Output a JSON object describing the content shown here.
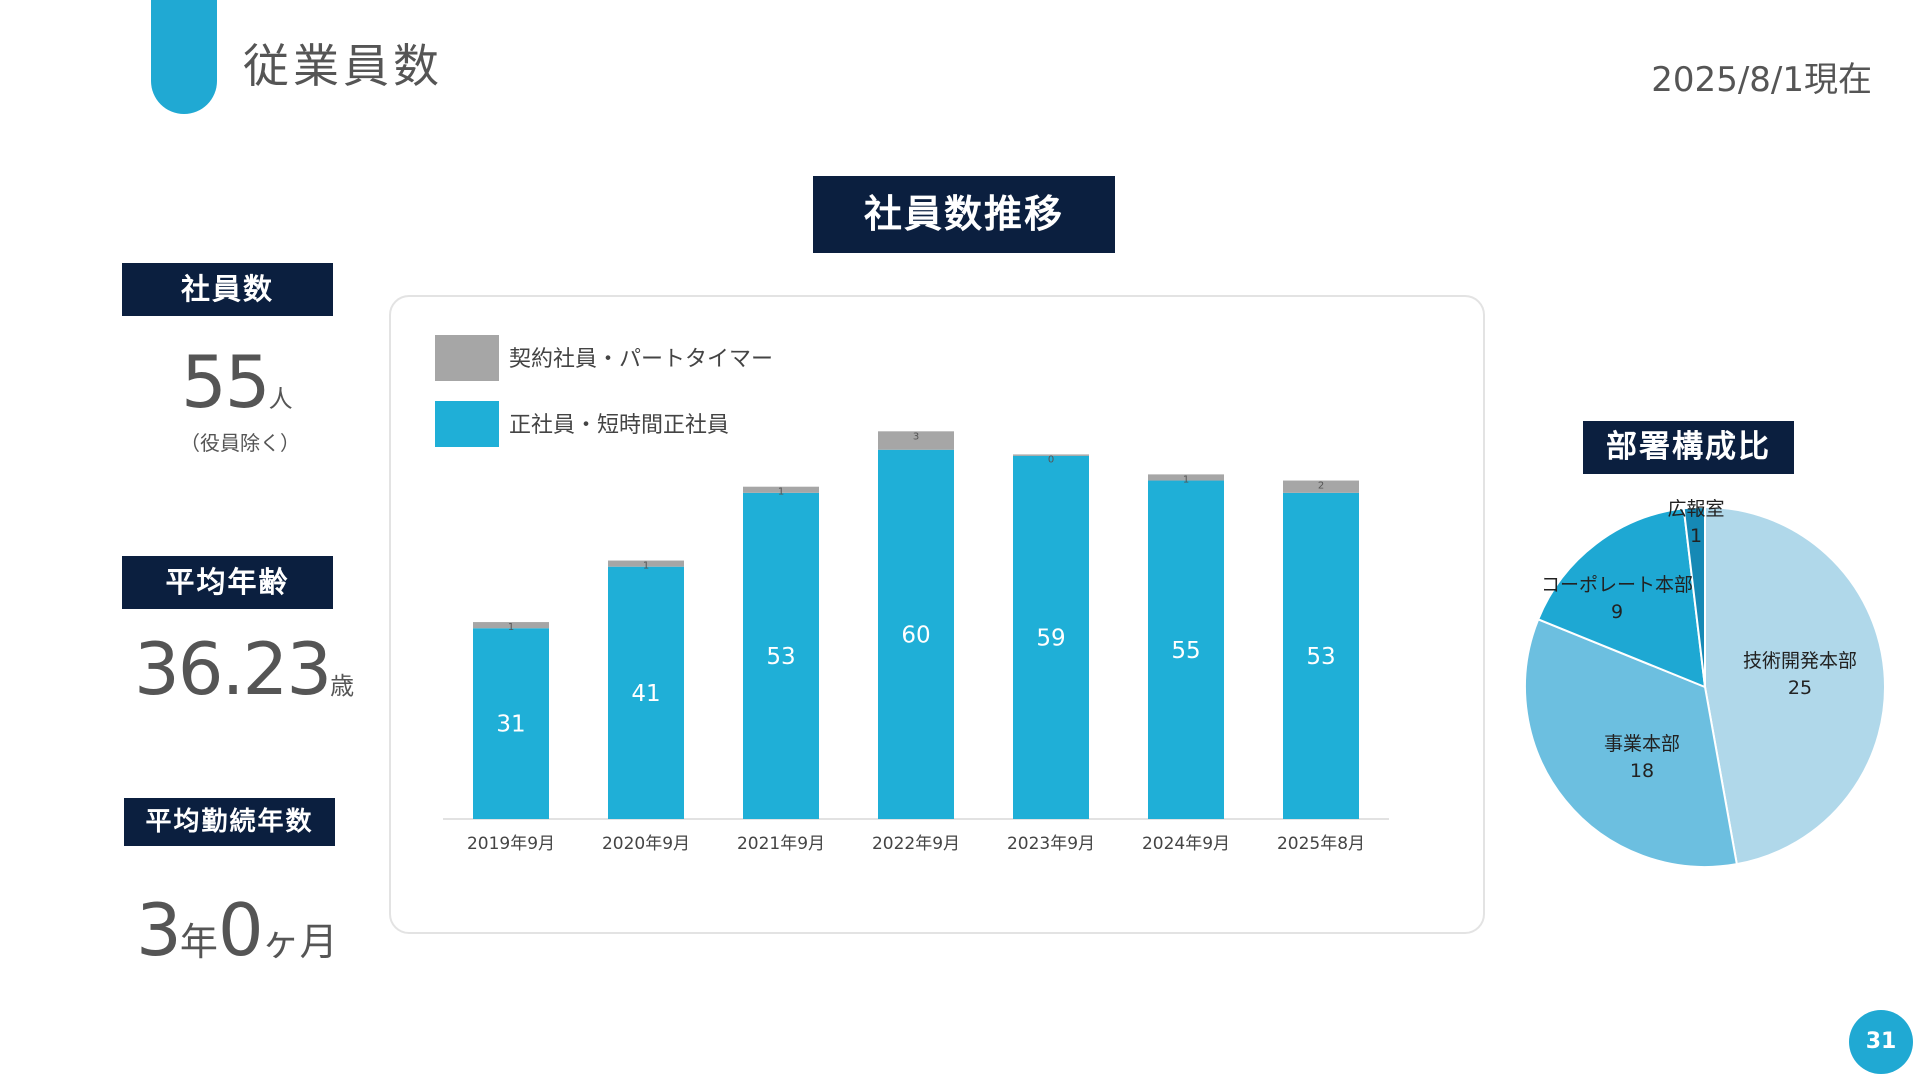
{
  "header": {
    "title": "従業員数",
    "as_of": "2025/8/1現在"
  },
  "stats": {
    "employees": {
      "label": "社員数",
      "value": "55",
      "unit": "人",
      "note": "（役員除く）"
    },
    "average_age": {
      "label": "平均年齢",
      "value": "36.23",
      "unit": "歳"
    },
    "average_tenure": {
      "label": "平均勤続年数",
      "years": "3",
      "years_unit": "年",
      "months": "0",
      "months_unit": "ヶ月"
    }
  },
  "page_number": "31",
  "colors": {
    "navy": "#0b1f3f",
    "accent": "#20a9d3",
    "fulltime": "#1fafd7",
    "contract": "#a6a6a6"
  },
  "chart_data": [
    {
      "type": "bar",
      "stacked": true,
      "title": "社員数推移",
      "categories": [
        "2019年9月",
        "2020年9月",
        "2021年9月",
        "2022年9月",
        "2023年9月",
        "2024年9月",
        "2025年8月"
      ],
      "series": [
        {
          "name": "正社員・短時間正社員",
          "values": [
            31,
            41,
            53,
            60,
            59,
            55,
            53
          ],
          "color": "#1fafd7"
        },
        {
          "name": "契約社員・パートタイマー",
          "values": [
            1,
            1,
            1,
            3,
            0,
            1,
            2
          ],
          "color": "#a6a6a6"
        }
      ],
      "ylim": [
        0,
        65
      ],
      "grid": false,
      "legend_placement": "top-left"
    },
    {
      "type": "pie",
      "title": "部署構成比",
      "slices": [
        {
          "label": "技術開発本部",
          "value": 25,
          "color": "#b0d8ea"
        },
        {
          "label": "事業本部",
          "value": 18,
          "color": "#6cbfe0"
        },
        {
          "label": "コーポレート本部",
          "value": 9,
          "color": "#1ea8d3"
        },
        {
          "label": "広報室",
          "value": 1,
          "color": "#1689b5"
        }
      ]
    }
  ]
}
